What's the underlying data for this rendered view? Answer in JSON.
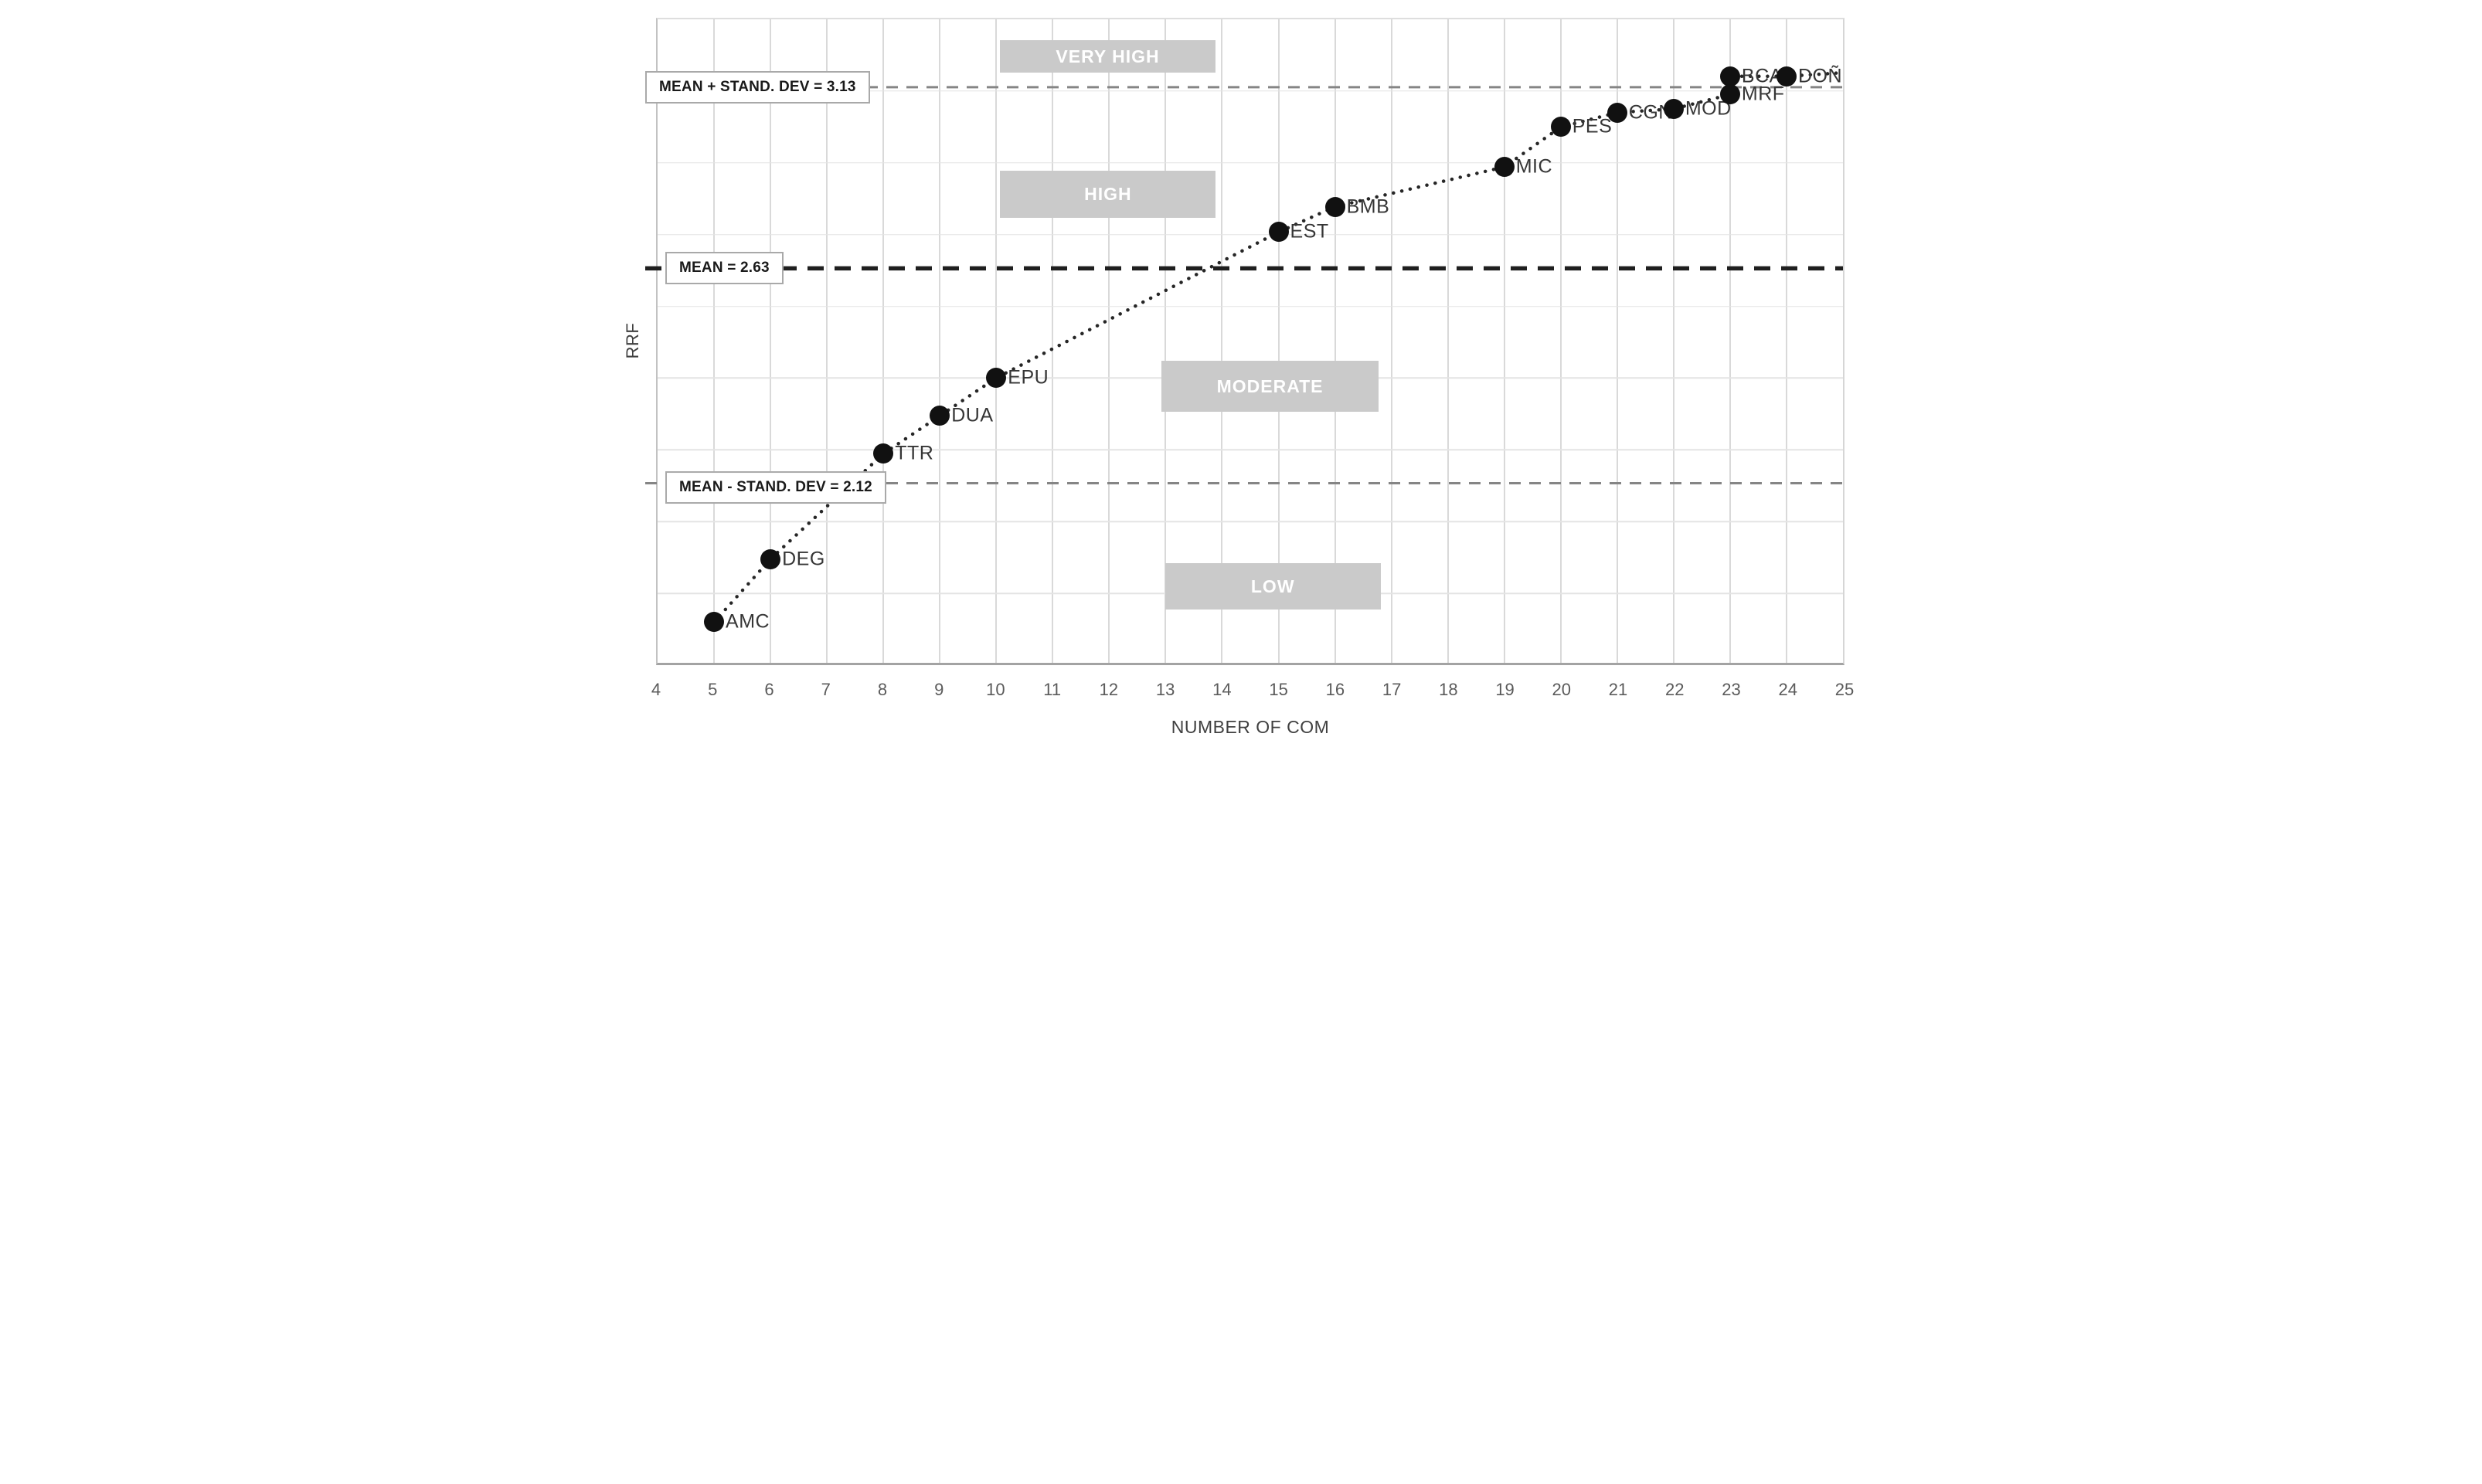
{
  "chart_data": {
    "type": "scatter",
    "title": "",
    "xlabel": "NUMBER OF COM",
    "ylabel": "RRF",
    "x_axis": {
      "min": 4,
      "max": 25,
      "ticks": [
        4,
        5,
        6,
        7,
        8,
        9,
        10,
        11,
        12,
        13,
        14,
        15,
        16,
        17,
        18,
        19,
        20,
        21,
        22,
        23,
        24,
        25
      ]
    },
    "y_axis": {
      "label": "RRF",
      "tick_labels_visible": false,
      "approx_visible_range": [
        1.6,
        3.35
      ]
    },
    "grid": "on",
    "points": [
      {
        "label": "AMC",
        "x": 5,
        "rrf": 1.79
      },
      {
        "label": "DEG",
        "x": 6,
        "rrf": 1.94
      },
      {
        "label": "TTR",
        "x": 8,
        "rrf": 2.19
      },
      {
        "label": "DUA",
        "x": 9,
        "rrf": 2.28
      },
      {
        "label": "EPU",
        "x": 10,
        "rrf": 2.37
      },
      {
        "label": "EST",
        "x": 15,
        "rrf": 2.73
      },
      {
        "label": "BMB",
        "x": 16,
        "rrf": 2.8
      },
      {
        "label": "MIC",
        "x": 19,
        "rrf": 2.91
      },
      {
        "label": "PES",
        "x": 20,
        "rrf": 3.02
      },
      {
        "label": "CGN",
        "x": 21,
        "rrf": 3.06
      },
      {
        "label": "MOD",
        "x": 22,
        "rrf": 3.07
      },
      {
        "label": "BCA",
        "x": 23,
        "rrf": 3.16
      },
      {
        "label": "MRF",
        "x": 23,
        "rrf": 3.11
      },
      {
        "label": "DOÑ",
        "x": 24,
        "rrf": 3.16
      }
    ],
    "reference_lines": [
      {
        "label": "MEAN + STAND. DEV = 3.13",
        "value": 3.13,
        "style": "light-dashed"
      },
      {
        "label": "MEAN = 2.63",
        "value": 2.63,
        "style": "heavy-dashed"
      },
      {
        "label": "MEAN - STAND. DEV = 2.12",
        "value": 2.12,
        "style": "light-dashed"
      }
    ],
    "zones": [
      {
        "label": "VERY HIGH",
        "x_range": [
          10.07,
          13.88
        ],
        "rrf_range": [
          3.17,
          3.26
        ]
      },
      {
        "label": "HIGH",
        "x_range": [
          10.07,
          13.89
        ],
        "rrf_range": [
          2.77,
          2.9
        ]
      },
      {
        "label": "MODERATE",
        "x_range": [
          12.93,
          16.77
        ],
        "rrf_range": [
          2.29,
          2.41
        ]
      },
      {
        "label": "LOW",
        "x_range": [
          12.99,
          16.81
        ],
        "rrf_range": [
          1.82,
          1.93
        ]
      }
    ],
    "trendline": {
      "style": "dotted",
      "end": {
        "x": 25,
        "rrf": 3.17
      }
    },
    "legend": "none"
  },
  "colors": {
    "background": "#ffffff",
    "point": "#111111",
    "zone_fill": "#cacaca",
    "zone_text": "#ffffff",
    "mean_line": "#1f1f1f",
    "sd_line": "#858585",
    "trend_line": "#262626",
    "grid_line": "#dddddd",
    "axis_text": "#5b5b5b"
  }
}
